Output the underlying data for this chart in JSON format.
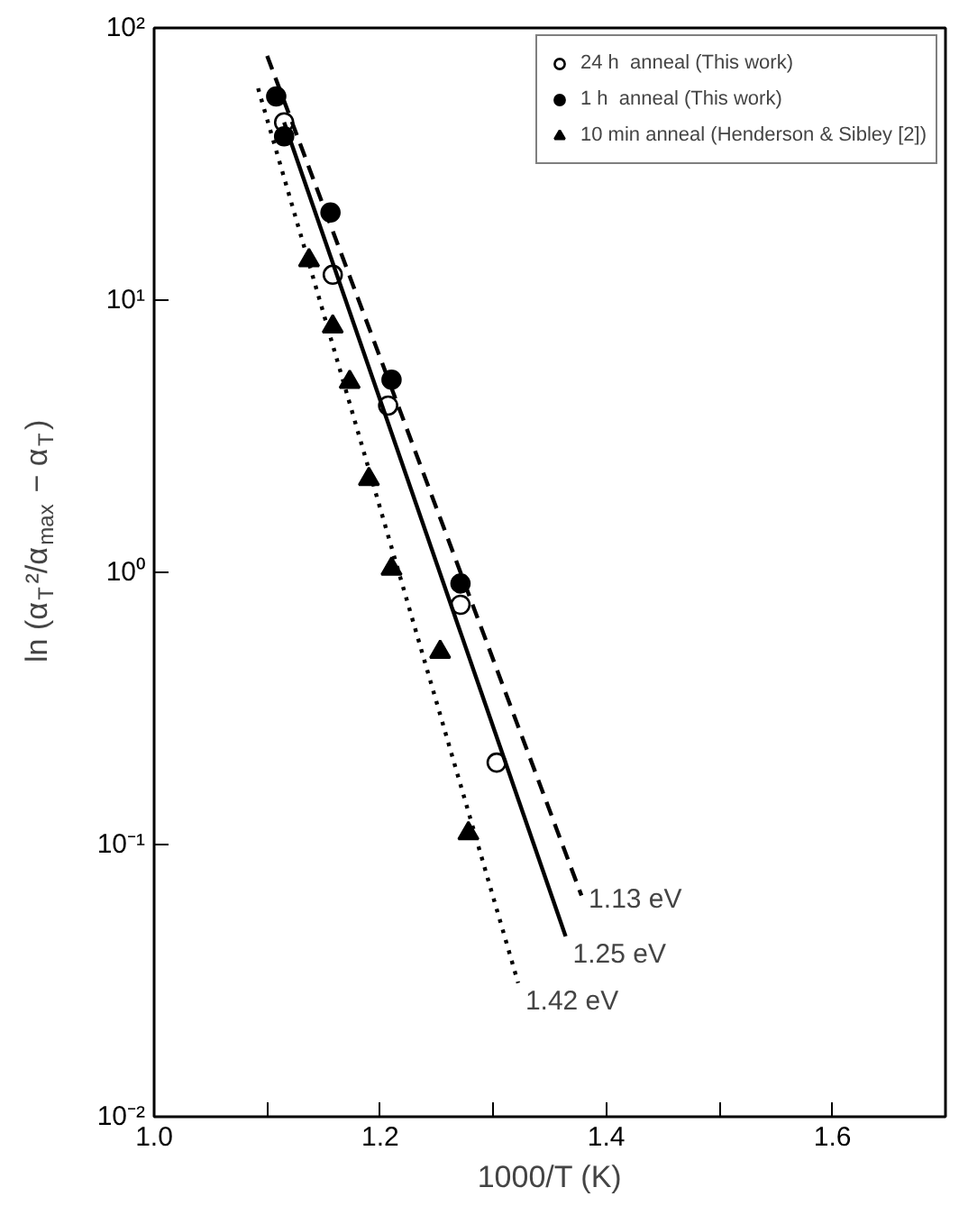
{
  "chart_data": {
    "type": "scatter",
    "xlabel": "1000/T (K)",
    "ylabel": "ln (α$_{T}$²/α$_{max}$ − α$_{T}$)",
    "log": "y",
    "xlim": [
      1.0,
      1.7
    ],
    "ylim": [
      0.01,
      100
    ],
    "xticks": [
      {
        "value": 1.0,
        "label": "1.0"
      },
      {
        "value": 1.1,
        "label": null
      },
      {
        "value": 1.2,
        "label": "1.2"
      },
      {
        "value": 1.3,
        "label": null
      },
      {
        "value": 1.4,
        "label": "1.4"
      },
      {
        "value": 1.5,
        "label": null
      },
      {
        "value": 1.6,
        "label": "1.6"
      }
    ],
    "yticks": [
      {
        "value": 0.01,
        "label": "10⁻²"
      },
      {
        "value": 0.1,
        "label": "10⁻¹"
      },
      {
        "value": 1,
        "label": "10⁰"
      },
      {
        "value": 10,
        "label": "10¹"
      },
      {
        "value": 100,
        "label": "10²"
      }
    ],
    "grid": false,
    "legend": "top right",
    "series": [
      {
        "name": "24 h  anneal (This work)",
        "marker": "circle",
        "color": "#ffffff",
        "x": [
          1.115,
          1.158,
          1.207,
          1.271,
          1.303
        ],
        "values": [
          45,
          12.4,
          4.1,
          0.76,
          0.2
        ]
      },
      {
        "name": "1 h  anneal (This work)",
        "marker": "circle",
        "color": "#000000",
        "x": [
          1.108,
          1.115,
          1.156,
          1.21,
          1.271
        ],
        "values": [
          56,
          40,
          21,
          5.1,
          0.91
        ]
      },
      {
        "name": "10 min anneal (Henderson & Sibley [2])",
        "marker": "triangle",
        "color": "#000000",
        "x": [
          1.137,
          1.158,
          1.173,
          1.19,
          1.21,
          1.253,
          1.278
        ],
        "values": [
          14,
          8,
          5,
          2.2,
          1.03,
          0.51,
          0.11
        ]
      },
      {
        "type": "line",
        "line_style": "dashed",
        "color": "#000000",
        "x": [
          1.1,
          1.378
        ],
        "values": [
          79,
          0.065
        ]
      },
      {
        "type": "line",
        "line_style": "solid",
        "color": "#000000",
        "x": [
          1.115,
          1.364
        ],
        "values": [
          45,
          0.046
        ]
      },
      {
        "type": "line",
        "line_style": "dotted",
        "color": "#000000",
        "x": [
          1.092,
          1.322
        ],
        "values": [
          60,
          0.031
        ]
      }
    ],
    "annotations": [
      {
        "text": "1.13 eV",
        "x": 1.378,
        "y": 0.065
      },
      {
        "text": "1.25 eV",
        "x": 1.364,
        "y": 0.046
      },
      {
        "text": "1.42 eV",
        "x": 1.322,
        "y": 0.031
      }
    ]
  }
}
